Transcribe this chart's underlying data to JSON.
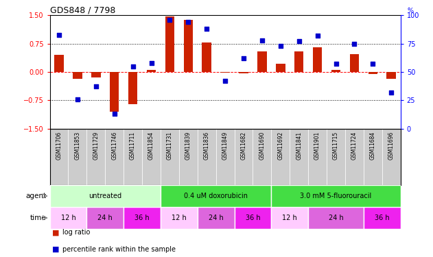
{
  "title": "GDS848 / 7798",
  "samples": [
    "GSM11706",
    "GSM11853",
    "GSM11729",
    "GSM11746",
    "GSM11711",
    "GSM11854",
    "GSM11731",
    "GSM11839",
    "GSM11836",
    "GSM11849",
    "GSM11682",
    "GSM11690",
    "GSM11692",
    "GSM11841",
    "GSM11901",
    "GSM11715",
    "GSM11724",
    "GSM11684",
    "GSM11696"
  ],
  "log_ratio": [
    0.45,
    -0.18,
    -0.15,
    -1.05,
    -0.85,
    0.05,
    1.48,
    1.38,
    0.78,
    -0.02,
    -0.03,
    0.55,
    0.22,
    0.55,
    0.65,
    0.05,
    0.48,
    -0.05,
    -0.18
  ],
  "percentile": [
    83,
    26,
    37,
    13,
    55,
    58,
    96,
    94,
    88,
    42,
    62,
    78,
    73,
    77,
    82,
    57,
    75,
    57,
    32
  ],
  "bar_color": "#cc2200",
  "dot_color": "#0000cc",
  "ylim_left": [
    -1.5,
    1.5
  ],
  "ylim_right": [
    0,
    100
  ],
  "yticks_left": [
    -1.5,
    -0.75,
    0.0,
    0.75,
    1.5
  ],
  "yticks_right": [
    0,
    25,
    50,
    75,
    100
  ],
  "hlines_dotted": [
    -0.75,
    0.75
  ],
  "hline_zero": 0.0,
  "agent_untreated_color": "#ccffcc",
  "agent_dox_color": "#44dd44",
  "agent_flu_color": "#44dd44",
  "time_12h_color": "#ffccff",
  "time_24h_color": "#dd66dd",
  "time_36h_color": "#ee22ee",
  "sample_bg_color": "#cccccc",
  "sample_border_color": "#ffffff",
  "agents": [
    {
      "label": "untreated",
      "start": 0,
      "end": 6
    },
    {
      "label": "0.4 uM doxorubicin",
      "start": 6,
      "end": 12
    },
    {
      "label": "3.0 mM 5-fluorouracil",
      "start": 12,
      "end": 19
    }
  ],
  "times": [
    {
      "label": "12 h",
      "start": 0,
      "end": 2,
      "type": "light"
    },
    {
      "label": "24 h",
      "start": 2,
      "end": 4,
      "type": "mid"
    },
    {
      "label": "36 h",
      "start": 4,
      "end": 6,
      "type": "dark"
    },
    {
      "label": "12 h",
      "start": 6,
      "end": 8,
      "type": "light"
    },
    {
      "label": "24 h",
      "start": 8,
      "end": 10,
      "type": "mid"
    },
    {
      "label": "36 h",
      "start": 10,
      "end": 12,
      "type": "dark"
    },
    {
      "label": "12 h",
      "start": 12,
      "end": 14,
      "type": "light"
    },
    {
      "label": "24 h",
      "start": 14,
      "end": 17,
      "type": "mid"
    },
    {
      "label": "36 h",
      "start": 17,
      "end": 19,
      "type": "dark"
    }
  ]
}
